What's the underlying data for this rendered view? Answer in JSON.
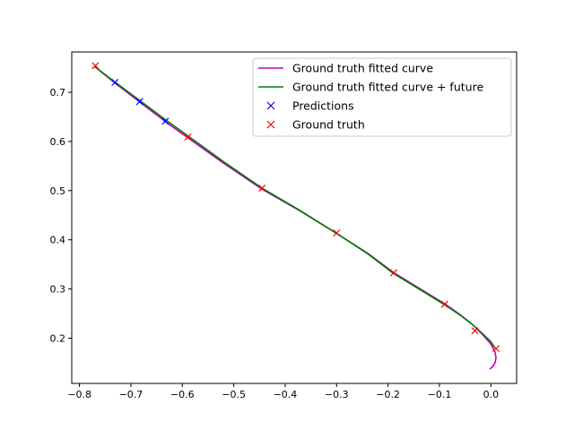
{
  "chart_data": {
    "type": "line",
    "title": "",
    "xlabel": "",
    "ylabel": "",
    "xlim": [
      -0.815,
      0.05
    ],
    "ylim": [
      0.108,
      0.782
    ],
    "xticks": [
      -0.8,
      -0.7,
      -0.6,
      -0.5,
      -0.4,
      -0.3,
      -0.2,
      -0.1,
      0.0
    ],
    "xtick_labels": [
      "−0.8",
      "−0.7",
      "−0.6",
      "−0.5",
      "−0.4",
      "−0.3",
      "−0.2",
      "−0.1",
      "0.0"
    ],
    "yticks": [
      0.2,
      0.3,
      0.4,
      0.5,
      0.6,
      0.7
    ],
    "ytick_labels": [
      "0.2",
      "0.3",
      "0.4",
      "0.5",
      "0.6",
      "0.7"
    ],
    "grid": false,
    "legend_position": "upper-right",
    "series": [
      {
        "name": "Ground truth fitted curve",
        "kind": "line",
        "color": "#bf00bf",
        "x": [
          -0.77,
          -0.73,
          -0.68,
          -0.63,
          -0.59,
          -0.52,
          -0.445,
          -0.37,
          -0.3,
          -0.24,
          -0.19,
          -0.14,
          -0.09,
          -0.06,
          -0.035,
          -0.015,
          0.0,
          0.008,
          0.01,
          0.008,
          0.004,
          -0.002
        ],
        "y": [
          0.752,
          0.718,
          0.678,
          0.638,
          0.608,
          0.556,
          0.503,
          0.458,
          0.413,
          0.373,
          0.334,
          0.302,
          0.27,
          0.248,
          0.227,
          0.206,
          0.188,
          0.172,
          0.16,
          0.15,
          0.143,
          0.137
        ]
      },
      {
        "name": "Ground truth fitted curve + future",
        "kind": "line",
        "color": "#007f00",
        "x": [
          -0.77,
          -0.73,
          -0.68,
          -0.63,
          -0.59,
          -0.52,
          -0.445,
          -0.37,
          -0.3,
          -0.24,
          -0.19,
          -0.14,
          -0.09,
          -0.06,
          -0.035,
          -0.015,
          0.0,
          0.008
        ],
        "y": [
          0.752,
          0.72,
          0.681,
          0.642,
          0.612,
          0.559,
          0.505,
          0.459,
          0.413,
          0.372,
          0.332,
          0.3,
          0.268,
          0.247,
          0.227,
          0.208,
          0.193,
          0.18
        ]
      },
      {
        "name": "Predictions",
        "kind": "marker",
        "color": "#0000ff",
        "x": [
          -0.731,
          -0.683,
          -0.633
        ],
        "y": [
          0.72,
          0.681,
          0.641
        ]
      },
      {
        "name": "Ground truth",
        "kind": "marker",
        "color": "#ff0000",
        "x": [
          -0.769,
          -0.589,
          -0.445,
          -0.3,
          -0.189,
          -0.09,
          -0.031,
          0.01
        ],
        "y": [
          0.754,
          0.609,
          0.505,
          0.414,
          0.333,
          0.269,
          0.215,
          0.179
        ]
      }
    ]
  }
}
